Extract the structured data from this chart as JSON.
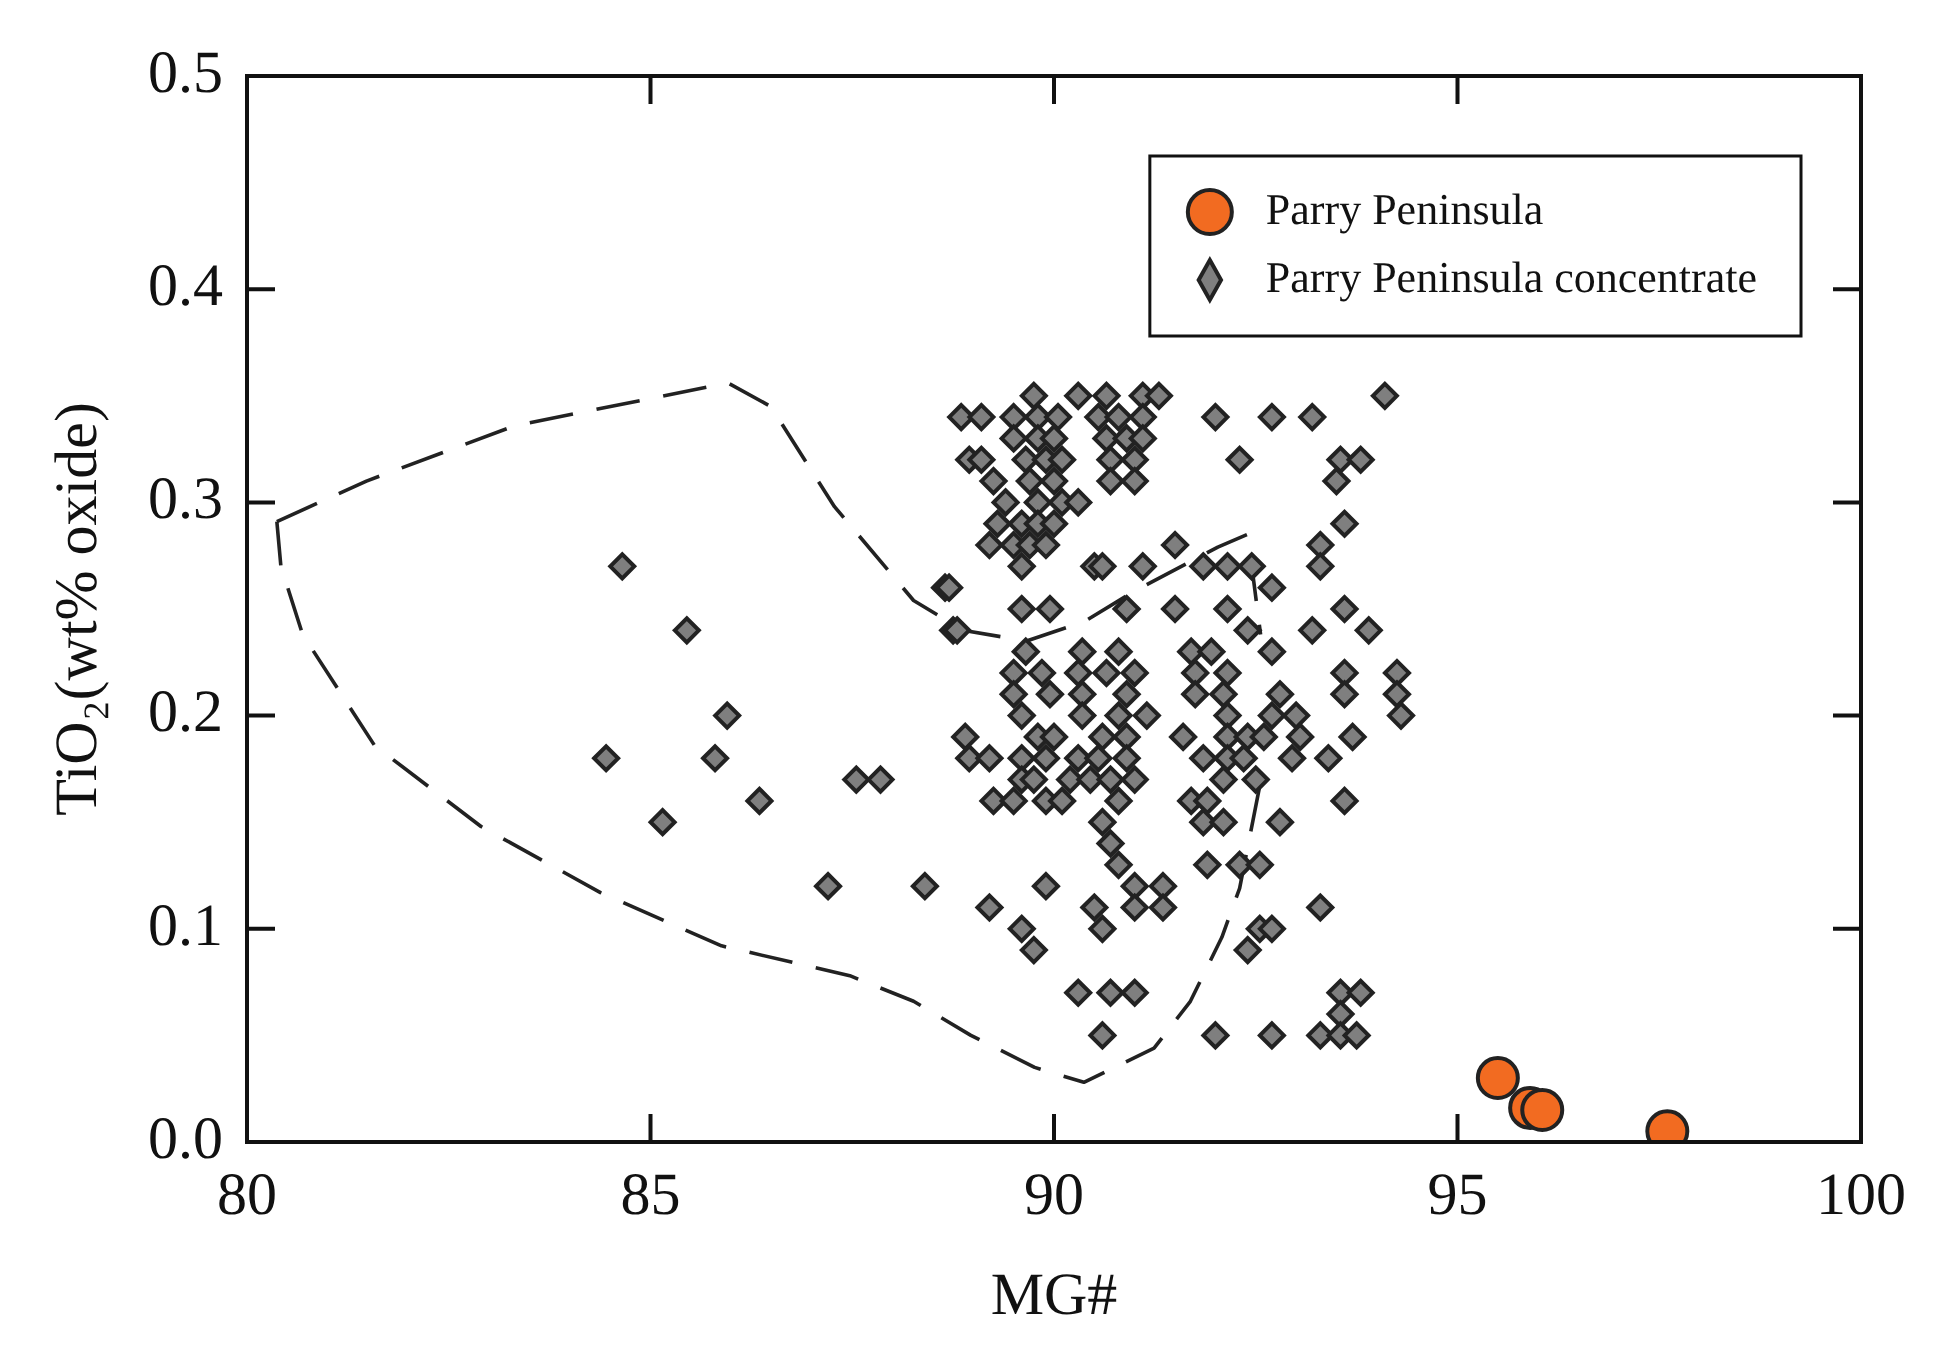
{
  "chart_data": {
    "type": "scatter",
    "xlabel": "MG#",
    "ylabel": "TiO₂(wt% oxide)",
    "xlim": [
      80,
      100
    ],
    "xticks": [
      80,
      85,
      90,
      95,
      100
    ],
    "ylim": [
      0,
      0.5
    ],
    "yticks": [
      {
        "value": 0,
        "label": "0.0"
      },
      0.1,
      0.2,
      0.3,
      0.4,
      0.5
    ],
    "grid": false,
    "legend": "top right",
    "series": [
      {
        "name": "Parry Peninsula",
        "color": "#f26b21",
        "marker": "circle",
        "x": [
          95.5,
          95.9,
          96.05,
          97.6
        ],
        "values": [
          0.03,
          0.016,
          0.015,
          0.005
        ]
      },
      {
        "name": "Parry Peninsula concentrate",
        "color": "#7f7f7f",
        "marker": "diamond",
        "x": [
          89.75,
          90.3,
          90.65,
          91.1,
          91.3,
          94.1,
          88.85,
          89.1,
          89.5,
          89.8,
          90.05,
          90.55,
          90.8,
          91.1,
          92.0,
          92.7,
          93.2,
          89.5,
          89.8,
          90.0,
          90.65,
          90.9,
          91.1,
          88.95,
          89.1,
          89.65,
          89.9,
          90.1,
          90.7,
          91.0,
          92.3,
          93.55,
          93.8,
          89.25,
          89.7,
          90.0,
          90.7,
          91.0,
          93.5,
          89.4,
          89.8,
          90.1,
          90.3,
          89.3,
          89.6,
          89.8,
          90.0,
          93.6,
          89.2,
          89.5,
          89.7,
          89.9,
          91.5,
          93.3,
          84.65,
          89.6,
          90.5,
          90.6,
          91.1,
          91.85,
          92.15,
          92.45,
          93.3,
          88.65,
          88.7,
          92.7,
          89.6,
          89.95,
          90.9,
          91.5,
          92.15,
          93.6,
          85.45,
          88.75,
          88.8,
          92.4,
          93.2,
          93.9,
          89.65,
          90.35,
          90.8,
          91.7,
          91.95,
          92.7,
          89.5,
          89.85,
          90.3,
          90.65,
          91.0,
          91.75,
          92.15,
          93.6,
          94.25,
          89.5,
          89.95,
          90.35,
          90.9,
          91.75,
          92.1,
          92.8,
          93.6,
          94.25,
          85.95,
          89.6,
          90.35,
          90.8,
          91.15,
          92.15,
          92.7,
          93.0,
          94.3,
          88.9,
          89.8,
          90.0,
          90.6,
          90.9,
          91.6,
          92.15,
          92.4,
          92.6,
          93.05,
          93.7,
          84.45,
          85.8,
          88.95,
          89.2,
          89.6,
          89.9,
          90.3,
          90.55,
          90.9,
          91.85,
          92.15,
          92.35,
          92.95,
          93.4,
          87.55,
          87.85,
          89.6,
          89.75,
          90.2,
          90.45,
          90.7,
          91.0,
          92.1,
          92.5,
          86.35,
          89.25,
          89.5,
          89.9,
          90.1,
          90.8,
          91.7,
          91.9,
          93.6,
          85.15,
          90.6,
          91.85,
          92.1,
          92.8,
          90.7,
          90.8,
          91.9,
          92.3,
          92.55,
          87.2,
          88.4,
          89.9,
          91.0,
          91.35,
          89.2,
          90.5,
          91.0,
          91.35,
          93.3,
          89.6,
          90.6,
          92.55,
          92.7,
          89.75,
          92.4,
          90.3,
          90.7,
          91.0,
          93.55,
          93.8,
          93.55,
          90.6,
          92.0,
          92.7,
          93.3,
          93.55,
          93.75
        ],
        "values": [
          0.35,
          0.35,
          0.35,
          0.35,
          0.35,
          0.35,
          0.34,
          0.34,
          0.34,
          0.34,
          0.34,
          0.34,
          0.34,
          0.34,
          0.34,
          0.34,
          0.34,
          0.33,
          0.33,
          0.33,
          0.33,
          0.33,
          0.33,
          0.32,
          0.32,
          0.32,
          0.32,
          0.32,
          0.32,
          0.32,
          0.32,
          0.32,
          0.32,
          0.31,
          0.31,
          0.31,
          0.31,
          0.31,
          0.31,
          0.3,
          0.3,
          0.3,
          0.3,
          0.29,
          0.29,
          0.29,
          0.29,
          0.29,
          0.28,
          0.28,
          0.28,
          0.28,
          0.28,
          0.28,
          0.27,
          0.27,
          0.27,
          0.27,
          0.27,
          0.27,
          0.27,
          0.27,
          0.27,
          0.26,
          0.26,
          0.26,
          0.25,
          0.25,
          0.25,
          0.25,
          0.25,
          0.25,
          0.24,
          0.24,
          0.24,
          0.24,
          0.24,
          0.24,
          0.23,
          0.23,
          0.23,
          0.23,
          0.23,
          0.23,
          0.22,
          0.22,
          0.22,
          0.22,
          0.22,
          0.22,
          0.22,
          0.22,
          0.22,
          0.21,
          0.21,
          0.21,
          0.21,
          0.21,
          0.21,
          0.21,
          0.21,
          0.21,
          0.2,
          0.2,
          0.2,
          0.2,
          0.2,
          0.2,
          0.2,
          0.2,
          0.2,
          0.19,
          0.19,
          0.19,
          0.19,
          0.19,
          0.19,
          0.19,
          0.19,
          0.19,
          0.19,
          0.19,
          0.18,
          0.18,
          0.18,
          0.18,
          0.18,
          0.18,
          0.18,
          0.18,
          0.18,
          0.18,
          0.18,
          0.18,
          0.18,
          0.18,
          0.17,
          0.17,
          0.17,
          0.17,
          0.17,
          0.17,
          0.17,
          0.17,
          0.17,
          0.17,
          0.16,
          0.16,
          0.16,
          0.16,
          0.16,
          0.16,
          0.16,
          0.16,
          0.16,
          0.15,
          0.15,
          0.15,
          0.15,
          0.15,
          0.14,
          0.13,
          0.13,
          0.13,
          0.13,
          0.12,
          0.12,
          0.12,
          0.12,
          0.12,
          0.11,
          0.11,
          0.11,
          0.11,
          0.11,
          0.1,
          0.1,
          0.1,
          0.1,
          0.09,
          0.09,
          0.07,
          0.07,
          0.07,
          0.07,
          0.07,
          0.06,
          0.05,
          0.05,
          0.05,
          0.05,
          0.05,
          0.05
        ]
      },
      {
        "type": "line",
        "color": "#222222",
        "line_style": "dashed",
        "marker": "none",
        "x": [
          80.37,
          81.48,
          83.32,
          85.96,
          86.49,
          87.28,
          88.26,
          88.87,
          89.66,
          90.37,
          90.98,
          92.03,
          92.4,
          92.56
        ],
        "values": [
          0.291,
          0.31,
          0.336,
          0.356,
          0.345,
          0.298,
          0.254,
          0.24,
          0.235,
          0.244,
          0.258,
          0.279,
          0.285,
          0.238
        ]
      },
      {
        "type": "line",
        "color": "#222222",
        "line_style": "dashed",
        "marker": "none",
        "x": [
          80.37,
          80.42,
          80.69,
          81.58,
          82.9,
          84.38,
          85.88,
          87.47,
          88.26,
          88.97,
          89.76,
          90.37,
          91.24,
          91.69,
          92.08,
          92.3,
          92.56
        ],
        "values": [
          0.291,
          0.27,
          0.238,
          0.186,
          0.148,
          0.117,
          0.092,
          0.078,
          0.066,
          0.05,
          0.035,
          0.028,
          0.044,
          0.066,
          0.096,
          0.119,
          0.169
        ]
      }
    ]
  }
}
